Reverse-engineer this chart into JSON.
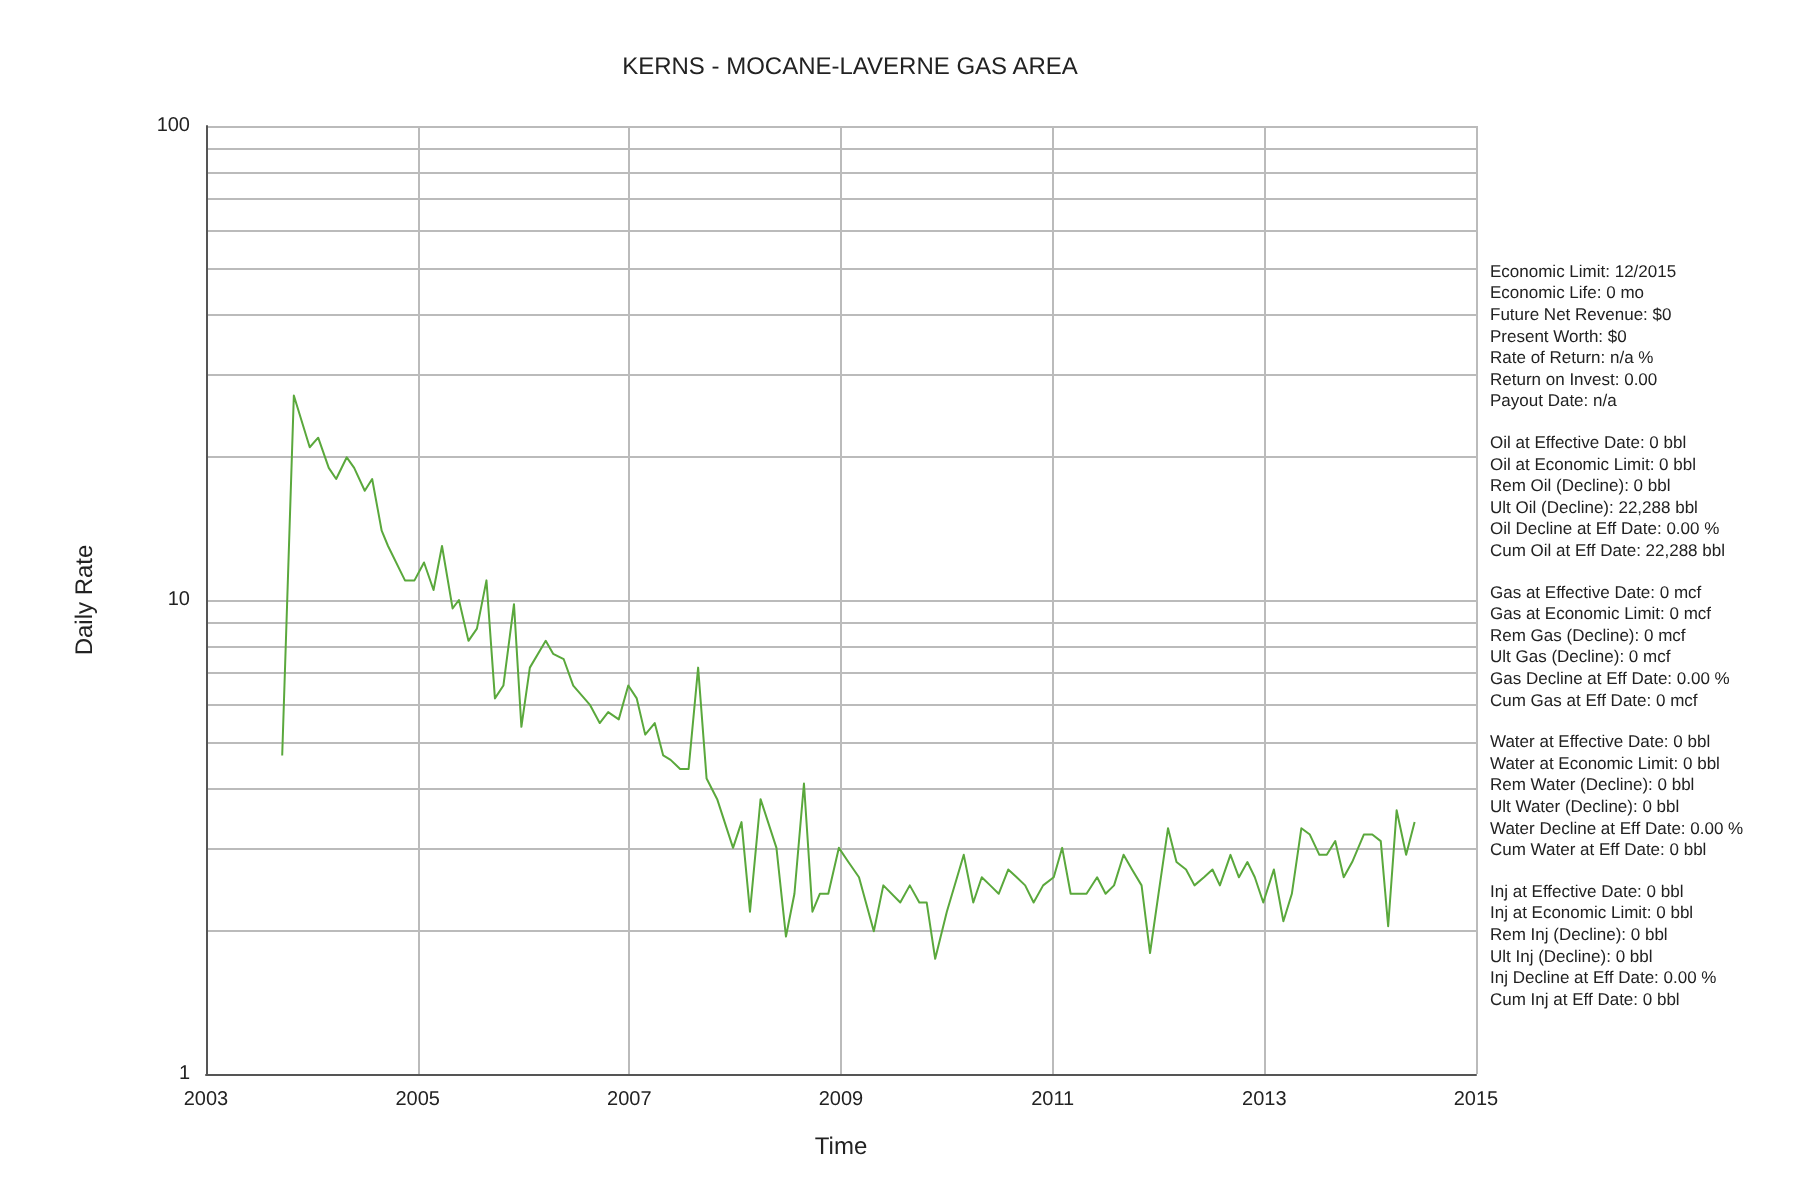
{
  "chart_data": {
    "type": "line",
    "title": "KERNS - MOCANE-LAVERNE GAS AREA",
    "xlabel": "Time",
    "ylabel": "Daily Rate",
    "x": [
      2003.72,
      2003.83,
      2003.98,
      2004.06,
      2004.16,
      2004.23,
      2004.33,
      2004.4,
      2004.5,
      2004.57,
      2004.66,
      2004.72,
      2004.88,
      2004.97,
      2005.06,
      2005.15,
      2005.23,
      2005.33,
      2005.39,
      2005.48,
      2005.56,
      2005.65,
      2005.73,
      2005.81,
      2005.91,
      2005.98,
      2006.06,
      2006.21,
      2006.28,
      2006.38,
      2006.47,
      2006.63,
      2006.72,
      2006.8,
      2006.9,
      2006.99,
      2007.07,
      2007.15,
      2007.24,
      2007.32,
      2007.39,
      2007.48,
      2007.56,
      2007.65,
      2007.73,
      2007.83,
      2007.98,
      2008.06,
      2008.14,
      2008.24,
      2008.39,
      2008.48,
      2008.56,
      2008.65,
      2008.73,
      2008.8,
      2008.88,
      2008.98,
      2009.07,
      2009.17,
      2009.31,
      2009.4,
      2009.56,
      2009.65,
      2009.74,
      2009.81,
      2009.89,
      2010.0,
      2010.16,
      2010.25,
      2010.33,
      2010.41,
      2010.49,
      2010.58,
      2010.66,
      2010.74,
      2010.82,
      2010.91,
      2011.01,
      2011.09,
      2011.17,
      2011.32,
      2011.42,
      2011.5,
      2011.58,
      2011.67,
      2011.75,
      2011.84,
      2011.92,
      2012.0,
      2012.09,
      2012.17,
      2012.26,
      2012.34,
      2012.43,
      2012.51,
      2012.58,
      2012.68,
      2012.76,
      2012.84,
      2012.91,
      2012.99,
      2013.09,
      2013.18,
      2013.26,
      2013.35,
      2013.43,
      2013.52,
      2013.59,
      2013.67,
      2013.75,
      2013.83,
      2013.94,
      2014.02,
      2014.1,
      2014.17,
      2014.25,
      2014.34,
      2014.42
    ],
    "series": [
      {
        "color": "#5aa83c",
        "values": [
          4.7,
          27,
          21,
          22,
          19,
          18,
          20,
          19,
          17,
          18,
          14,
          13,
          11,
          11,
          12,
          10.5,
          13,
          9.6,
          10,
          8.2,
          8.7,
          11,
          6.2,
          6.6,
          9.8,
          5.4,
          7.2,
          8.2,
          7.7,
          7.5,
          6.6,
          6,
          5.5,
          5.8,
          5.6,
          6.6,
          6.2,
          5.2,
          5.5,
          4.7,
          4.6,
          4.4,
          4.4,
          7.2,
          4.2,
          3.8,
          3,
          3.4,
          2.2,
          3.8,
          3,
          1.95,
          2.4,
          4.1,
          2.2,
          2.4,
          2.4,
          3,
          2.8,
          2.6,
          2,
          2.5,
          2.3,
          2.5,
          2.3,
          2.3,
          1.75,
          2.2,
          2.9,
          2.3,
          2.6,
          2.5,
          2.4,
          2.7,
          2.6,
          2.5,
          2.3,
          2.5,
          2.6,
          3,
          2.4,
          2.4,
          2.6,
          2.4,
          2.5,
          2.9,
          2.7,
          2.5,
          1.8,
          2.4,
          3.3,
          2.8,
          2.7,
          2.5,
          2.6,
          2.7,
          2.5,
          2.9,
          2.6,
          2.8,
          2.6,
          2.3,
          2.7,
          2.1,
          2.4,
          3.3,
          3.2,
          2.9,
          2.9,
          3.1,
          2.6,
          2.8,
          3.2,
          3.2,
          3.1,
          2.05,
          3.6,
          2.9,
          3.4
        ]
      }
    ],
    "xlim": [
      2003,
      2015
    ],
    "xticks": [
      2003,
      2005,
      2007,
      2009,
      2011,
      2013,
      2015
    ],
    "ylim": [
      1,
      100
    ],
    "yticks": [
      1,
      {
        "value": 2,
        "label": null
      },
      {
        "value": 3,
        "label": null
      },
      {
        "value": 4,
        "label": null
      },
      {
        "value": 5,
        "label": null
      },
      {
        "value": 6,
        "label": null
      },
      {
        "value": 7,
        "label": null
      },
      {
        "value": 8,
        "label": null
      },
      {
        "value": 9,
        "label": null
      },
      10,
      {
        "value": 20,
        "label": null
      },
      {
        "value": 30,
        "label": null
      },
      {
        "value": 40,
        "label": null
      },
      {
        "value": 50,
        "label": null
      },
      {
        "value": 60,
        "label": null
      },
      {
        "value": 70,
        "label": null
      },
      {
        "value": 80,
        "label": null
      },
      {
        "value": 90,
        "label": null
      },
      100
    ],
    "log": "y",
    "grid": true,
    "marker": "none",
    "line_style": "solid",
    "annotations": [
      "Economic Limit: 12/2015\nEconomic Life: 0 mo\nFuture Net Revenue: $0\nPresent Worth: $0\nRate of Return: n/a %\nReturn on Invest: 0.00\nPayout Date: n/a",
      "Oil at Effective Date: 0 bbl\nOil at Economic Limit: 0 bbl\nRem Oil (Decline): 0 bbl\nUlt Oil (Decline): 22,288 bbl\nOil Decline at Eff Date: 0.00 %\nCum Oil at Eff Date: 22,288 bbl",
      "Gas at Effective Date: 0 mcf\nGas at Economic Limit: 0 mcf\nRem Gas (Decline): 0 mcf\nUlt Gas (Decline): 0 mcf\nGas Decline at Eff Date: 0.00 %\nCum Gas at Eff Date: 0 mcf",
      "Water at Effective Date: 0 bbl\nWater at Economic Limit: 0 bbl\nRem Water (Decline): 0 bbl\nUlt Water (Decline): 0 bbl\nWater Decline at Eff Date: 0.00 %\nCum Water at Eff Date: 0 bbl",
      "Inj at Effective Date: 0 bbl\nInj at Economic Limit: 0 bbl\nRem Inj (Decline): 0 bbl\nUlt Inj (Decline): 0 bbl\nInj Decline at Eff Date: 0.00 %\nCum Inj at Eff Date: 0 bbl"
    ]
  }
}
